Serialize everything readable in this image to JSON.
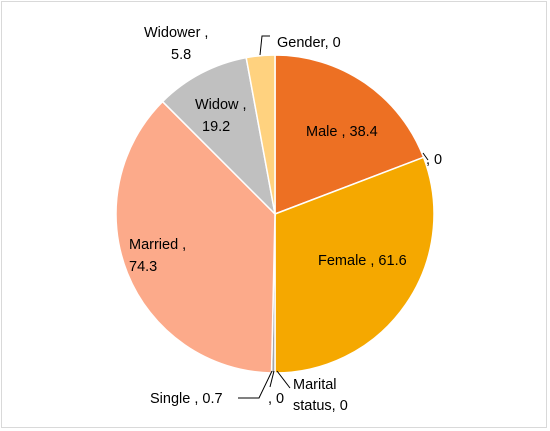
{
  "chart_data": {
    "type": "pie",
    "slices": [
      {
        "label": "Male",
        "value": 38.4,
        "text": "Male , 38.4",
        "color": "#ED7023"
      },
      {
        "label": "",
        "value": 0,
        "text": ", 0",
        "color": "#ED7023"
      },
      {
        "label": "Female",
        "value": 61.6,
        "text": "Female , 61.6",
        "color": "#F5A800"
      },
      {
        "label": "Marital status",
        "value": 0,
        "text_lines": [
          "Marital",
          "status, 0"
        ],
        "color": "#F5A800"
      },
      {
        "label": "",
        "value": 0,
        "text": ", 0",
        "color": "#A5A5A5"
      },
      {
        "label": "Single",
        "value": 0.7,
        "text": "Single , 0.7",
        "color": "#A5A5A5"
      },
      {
        "label": "Married",
        "value": 74.3,
        "text_lines": [
          "Married ,",
          "74.3"
        ],
        "color": "#FCAA8A"
      },
      {
        "label": "Widow",
        "value": 19.2,
        "text_lines": [
          "Widow ,",
          "19.2"
        ],
        "color": "#C0C0C0"
      },
      {
        "label": "Widower",
        "value": 5.8,
        "text_lines": [
          "Widower ,",
          "5.8"
        ],
        "color": "#FFD27F"
      },
      {
        "label": "Gender",
        "value": 0,
        "text": "Gender, 0",
        "color": "#ED7023"
      }
    ]
  }
}
